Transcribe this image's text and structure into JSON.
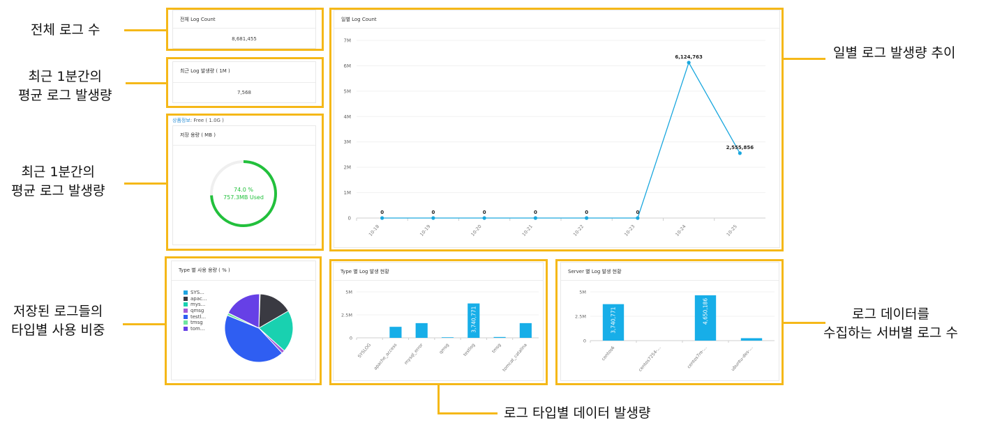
{
  "callouts": {
    "total": "전체 로그 수",
    "recent_line1": "최근 1분간의",
    "recent_line2": "평균 로그 발생량",
    "storage_line1": "최근 1분간의",
    "storage_line2": "평균 로그 발생량",
    "types_line1": "저장된 로그들의",
    "types_line2": "타입별 사용 비중",
    "daily": "일별 로그 발생량 추이",
    "server_line1": "로그 데이터를",
    "server_line2": "수집하는 서버별 로그 수",
    "type_generation": "로그 타입별 데이터 발생량"
  },
  "total_card": {
    "title": "전체 Log Count",
    "value": "8,681,455"
  },
  "recent_card": {
    "title": "최근 Log 발생량 ( 1M )",
    "value": "7,568"
  },
  "storage_card": {
    "plan_label": "상품정보",
    "plan_value": ": Free ( 1.0G )",
    "title": "저장 용량 ( MB )",
    "percent_text": "74.0 %",
    "used_text": "757.3MB Used",
    "percent": 74.0
  },
  "colors": {
    "accent": "#f5b818",
    "line": "#1aa7de",
    "bar": "#17aee8",
    "gauge": "#22c03c",
    "link": "#2b8fd6"
  },
  "pie_card": {
    "title": "Type 별 사용 용량 ( % )"
  },
  "type_card": {
    "title": "Type 별 Log 발생 현황"
  },
  "server_card": {
    "title": "Server 별 Log 발생 현황"
  },
  "daily_card": {
    "title": "일별 Log Count"
  },
  "chart_data": [
    {
      "type": "line",
      "title": "일별 Log Count",
      "x": [
        "10-18",
        "10-19",
        "10-20",
        "10-21",
        "10-22",
        "10-23",
        "10-24",
        "10-25"
      ],
      "values": [
        0,
        0,
        0,
        0,
        0,
        0,
        6124763,
        2555856
      ],
      "value_labels": [
        "0",
        "0",
        "0",
        "0",
        "0",
        "0",
        "6,124,763",
        "2,555,856"
      ],
      "y_ticks": [
        "0",
        "1M",
        "2M",
        "3M",
        "4M",
        "5M",
        "6M",
        "7M"
      ],
      "ylim": [
        0,
        7000000
      ],
      "grid": true
    },
    {
      "type": "pie",
      "title": "Type 별 사용 용량 ( % )",
      "categories": [
        "SYS...",
        "apac...",
        "mys...",
        "qmsg",
        "testl...",
        "tmsg",
        "tom..."
      ],
      "values": [
        0.3,
        16,
        20,
        1.5,
        43,
        1.2,
        18
      ],
      "colors": [
        "#1fa4e0",
        "#3a3a42",
        "#19d1b0",
        "#a35ad6",
        "#2f5ef2",
        "#6ee6a0",
        "#6640e6"
      ],
      "legend": "left"
    },
    {
      "type": "bar",
      "title": "Type 별 Log 발생 현황",
      "categories": [
        "SYSLOG",
        "apache_access",
        "mysql_error",
        "qmsg",
        "testlog",
        "tmsg",
        "tomcat_catalina"
      ],
      "values": [
        0,
        1200000,
        1600000,
        60000,
        3740771,
        90000,
        1600000
      ],
      "bar_labels": [
        "",
        "",
        "",
        "",
        "3,740,771",
        "",
        ""
      ],
      "y_ticks": [
        "0",
        "2.5M",
        "5M"
      ],
      "ylim": [
        0,
        5000000
      ]
    },
    {
      "type": "bar",
      "title": "Server 별 Log 발생 현황",
      "categories": [
        "centos6",
        "centos7254-...",
        "centos7re-...",
        "ubuntu-des-..."
      ],
      "values": [
        3740771,
        0,
        4650186,
        250000
      ],
      "bar_labels": [
        "3,740,771",
        "",
        "4,650,186",
        ""
      ],
      "y_ticks": [
        "0",
        "2.5M",
        "5M"
      ],
      "ylim": [
        0,
        5000000
      ]
    }
  ]
}
